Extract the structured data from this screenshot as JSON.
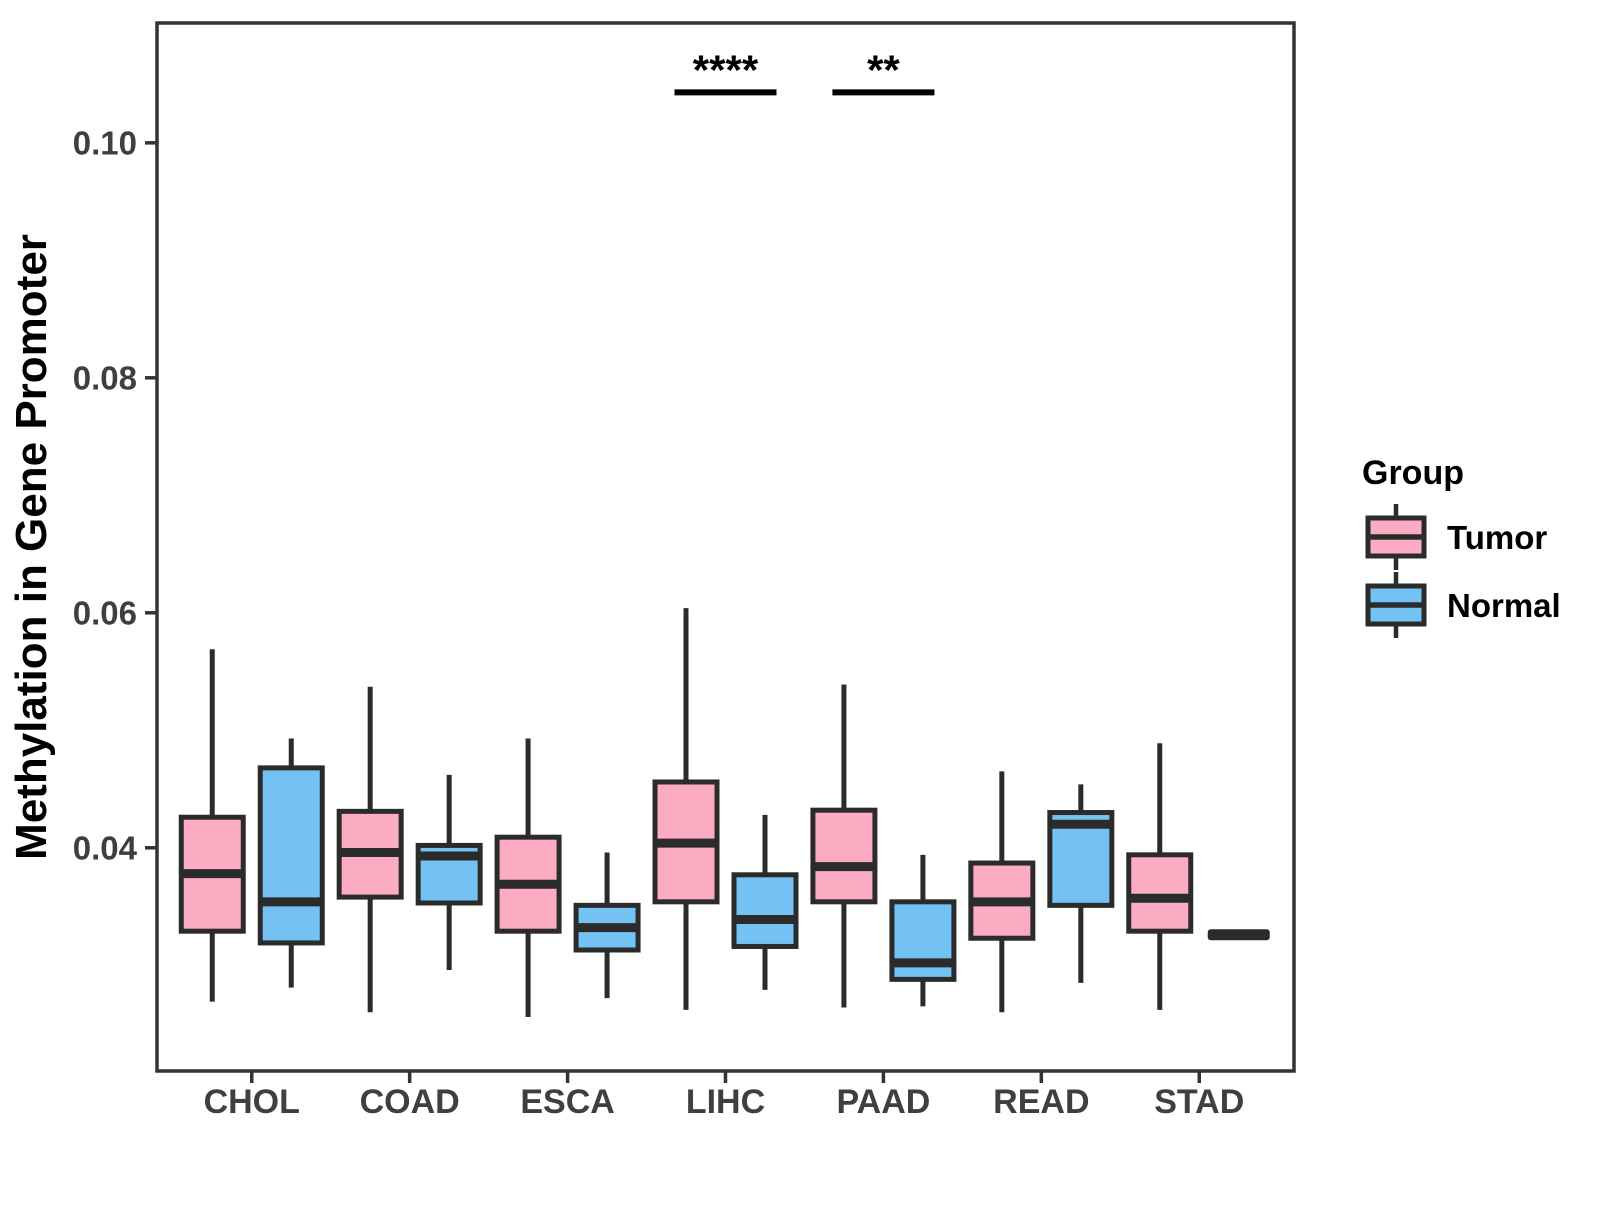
{
  "chart_data": {
    "type": "boxplot",
    "title": "",
    "xlabel": "",
    "ylabel": "Methylation in Gene Promoter",
    "ylim": [
      0.021,
      0.1102
    ],
    "yticks": [
      0.04,
      0.06,
      0.08,
      0.1
    ],
    "ytick_labels": [
      "0.04",
      "0.06",
      "0.08",
      "0.10"
    ],
    "categories": [
      "CHOL",
      "COAD",
      "ESCA",
      "LIHC",
      "PAAD",
      "READ",
      "STAD"
    ],
    "grid": false,
    "legend": {
      "title": "Group",
      "position": "right",
      "entries": [
        {
          "label": "Tumor",
          "color": "#FBACC2"
        },
        {
          "label": "Normal",
          "color": "#74C1F4"
        }
      ]
    },
    "series": [
      {
        "name": "Tumor",
        "color": "#FBACC2",
        "boxes": [
          {
            "category": "CHOL",
            "whisker_low": 0.0269,
            "q1": 0.0329,
            "median": 0.0378,
            "q3": 0.0426,
            "whisker_high": 0.0569
          },
          {
            "category": "COAD",
            "whisker_low": 0.026,
            "q1": 0.0358,
            "median": 0.0396,
            "q3": 0.0431,
            "whisker_high": 0.0537
          },
          {
            "category": "ESCA",
            "whisker_low": 0.0256,
            "q1": 0.0329,
            "median": 0.0369,
            "q3": 0.0409,
            "whisker_high": 0.0493
          },
          {
            "category": "LIHC",
            "whisker_low": 0.0262,
            "q1": 0.0354,
            "median": 0.0404,
            "q3": 0.0456,
            "whisker_high": 0.0604
          },
          {
            "category": "PAAD",
            "whisker_low": 0.0264,
            "q1": 0.0354,
            "median": 0.0384,
            "q3": 0.0432,
            "whisker_high": 0.0539
          },
          {
            "category": "READ",
            "whisker_low": 0.026,
            "q1": 0.0323,
            "median": 0.0354,
            "q3": 0.0387,
            "whisker_high": 0.0465
          },
          {
            "category": "STAD",
            "whisker_low": 0.0262,
            "q1": 0.0329,
            "median": 0.0357,
            "q3": 0.0394,
            "whisker_high": 0.0489
          }
        ]
      },
      {
        "name": "Normal",
        "color": "#74C1F4",
        "boxes": [
          {
            "category": "CHOL",
            "whisker_low": 0.0281,
            "q1": 0.0319,
            "median": 0.0354,
            "q3": 0.0468,
            "whisker_high": 0.0493
          },
          {
            "category": "COAD",
            "whisker_low": 0.0296,
            "q1": 0.0353,
            "median": 0.0393,
            "q3": 0.0402,
            "whisker_high": 0.0462
          },
          {
            "category": "ESCA",
            "whisker_low": 0.0272,
            "q1": 0.0313,
            "median": 0.0332,
            "q3": 0.0351,
            "whisker_high": 0.0396
          },
          {
            "category": "LIHC",
            "whisker_low": 0.0279,
            "q1": 0.0316,
            "median": 0.0339,
            "q3": 0.0377,
            "whisker_high": 0.0428
          },
          {
            "category": "PAAD",
            "whisker_low": 0.0265,
            "q1": 0.0288,
            "median": 0.0302,
            "q3": 0.0354,
            "whisker_high": 0.0394
          },
          {
            "category": "READ",
            "whisker_low": 0.0285,
            "q1": 0.0351,
            "median": 0.042,
            "q3": 0.043,
            "whisker_high": 0.0454
          },
          {
            "category": "STAD",
            "whisker_low": 0.0326,
            "q1": 0.0326,
            "median": 0.0326,
            "q3": 0.0326,
            "whisker_high": 0.0326
          }
        ]
      }
    ],
    "annotations": [
      {
        "label": "****",
        "category": "LIHC",
        "y": 0.1043
      },
      {
        "label": "**",
        "category": "PAAD",
        "y": 0.1043
      }
    ],
    "colors": {
      "box_border": "#2B2B2B",
      "panel_border": "#333333",
      "axis_text": "#3F3F3F",
      "axis_title": "#000000",
      "annotation": "#000000",
      "background": "#FFFFFF"
    }
  }
}
